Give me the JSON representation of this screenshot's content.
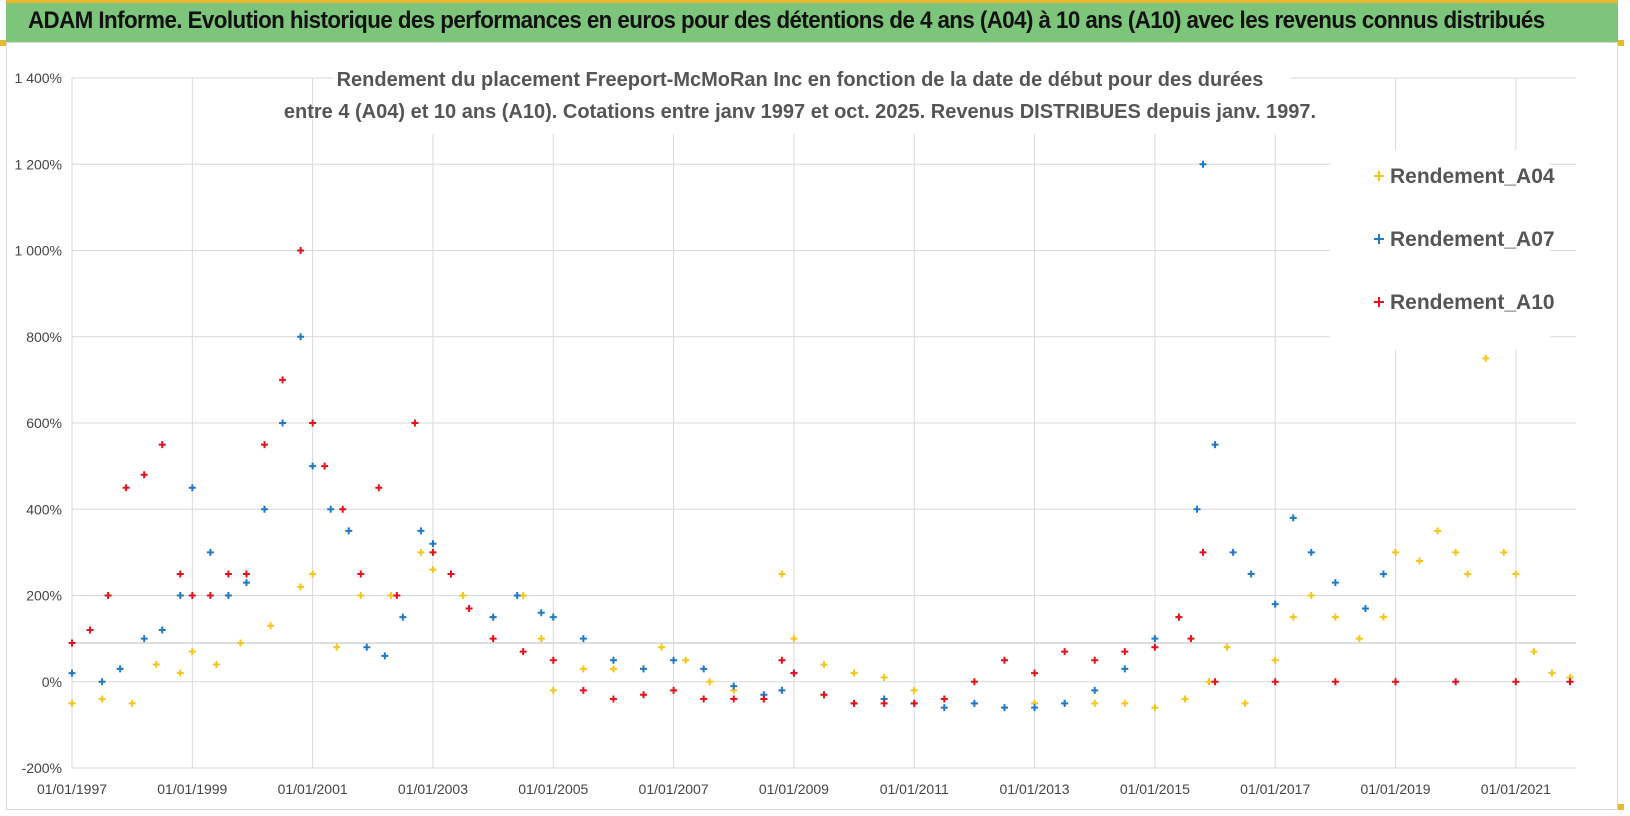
{
  "banner": {
    "title": "ADAM Informe. Evolution historique des performances en euros pour des détentions de 4 ans (A04) à 10 ans (A10) avec les revenus connus distribués"
  },
  "colors": {
    "A04": "#f5c518",
    "A07": "#1f78c8",
    "A10": "#e8101a",
    "grid": "#d9d9d9",
    "banner": "#7dc57b"
  },
  "chart_data": {
    "type": "scatter",
    "title": [
      "Rendement du placement Freeport-McMoRan Inc en fonction de la date de début pour des durées",
      "entre 4 (A04) et 10 ans (A10). Cotations entre janv 1997 et oct. 2025. Revenus DISTRIBUES depuis janv. 1997."
    ],
    "xlabel": "",
    "ylabel": "",
    "xlim": [
      1997.0,
      2022.0
    ],
    "ylim": [
      -200,
      1400
    ],
    "x_ticks": [
      1997,
      1999,
      2001,
      2003,
      2005,
      2007,
      2009,
      2011,
      2013,
      2015,
      2017,
      2019,
      2021
    ],
    "x_tick_labels": [
      "01/01/1997",
      "01/01/1999",
      "01/01/2001",
      "01/01/2003",
      "01/01/2005",
      "01/01/2007",
      "01/01/2009",
      "01/01/2011",
      "01/01/2013",
      "01/01/2015",
      "01/01/2017",
      "01/01/2019",
      "01/01/2021"
    ],
    "y_ticks": [
      -200,
      0,
      200,
      400,
      600,
      800,
      1000,
      1200,
      1400
    ],
    "y_tick_labels": [
      "-200%",
      "0%",
      "200%",
      "400%",
      "600%",
      "800%",
      "1 000%",
      "1 200%",
      "1 400%"
    ],
    "grid": true,
    "legend_position": "top-right",
    "series": [
      {
        "name": "Rendement_A04",
        "x": [
          1997.0,
          1997.5,
          1998.0,
          1998.4,
          1998.8,
          1999.0,
          1999.4,
          1999.8,
          2000.3,
          2000.8,
          2001.0,
          2001.4,
          2001.8,
          2002.3,
          2002.8,
          2003.0,
          2003.5,
          2004.0,
          2004.5,
          2004.8,
          2005.0,
          2005.5,
          2006.0,
          2006.5,
          2006.8,
          2007.2,
          2007.6,
          2008.0,
          2008.5,
          2008.8,
          2009.0,
          2009.5,
          2010.0,
          2010.5,
          2011.0,
          2011.5,
          2012.0,
          2012.5,
          2013.0,
          2013.5,
          2014.0,
          2014.5,
          2015.0,
          2015.5,
          2015.9,
          2016.2,
          2016.5,
          2017.0,
          2017.3,
          2017.6,
          2018.0,
          2018.4,
          2018.8,
          2019.0,
          2019.4,
          2019.7,
          2020.0,
          2020.2,
          2020.5,
          2020.8,
          2021.0,
          2021.3,
          2021.6,
          2021.9
        ],
        "values": [
          -50,
          -40,
          -50,
          40,
          20,
          70,
          40,
          90,
          130,
          220,
          250,
          80,
          200,
          200,
          300,
          260,
          200,
          150,
          200,
          100,
          -20,
          30,
          30,
          30,
          80,
          50,
          0,
          -20,
          -40,
          250,
          100,
          40,
          20,
          10,
          -20,
          -40,
          -50,
          -60,
          -50,
          -50,
          -50,
          -50,
          -60,
          -40,
          0,
          80,
          -50,
          50,
          150,
          200,
          150,
          100,
          150,
          300,
          280,
          350,
          300,
          250,
          750,
          300,
          250,
          70,
          20,
          10
        ]
      },
      {
        "name": "Rendement_A07",
        "x": [
          1997.0,
          1997.5,
          1997.8,
          1998.2,
          1998.5,
          1998.8,
          1999.0,
          1999.3,
          1999.6,
          1999.9,
          2000.2,
          2000.5,
          2000.8,
          2001.0,
          2001.3,
          2001.6,
          2001.9,
          2002.2,
          2002.5,
          2002.8,
          2003.0,
          2003.3,
          2003.6,
          2004.0,
          2004.4,
          2004.8,
          2005.0,
          2005.5,
          2006.0,
          2006.5,
          2007.0,
          2007.5,
          2008.0,
          2008.5,
          2008.8,
          2009.0,
          2009.5,
          2010.0,
          2010.5,
          2011.0,
          2011.5,
          2012.0,
          2012.5,
          2013.0,
          2013.5,
          2014.0,
          2014.5,
          2015.0,
          2015.4,
          2015.7,
          2015.8,
          2016.0,
          2016.3,
          2016.6,
          2017.0,
          2017.3,
          2017.6,
          2018.0,
          2018.5,
          2018.8
        ],
        "values": [
          20,
          0,
          30,
          100,
          120,
          200,
          450,
          300,
          200,
          230,
          400,
          600,
          800,
          500,
          400,
          350,
          80,
          60,
          150,
          350,
          320,
          250,
          170,
          150,
          200,
          160,
          150,
          100,
          50,
          30,
          50,
          30,
          -10,
          -30,
          -20,
          20,
          -30,
          -50,
          -40,
          -50,
          -60,
          -50,
          -60,
          -60,
          -50,
          -20,
          30,
          100,
          150,
          400,
          1200,
          550,
          300,
          250,
          180,
          380,
          300,
          230,
          170,
          250
        ]
      },
      {
        "name": "Rendement_A10",
        "x": [
          1997.0,
          1997.3,
          1997.6,
          1997.9,
          1998.2,
          1998.5,
          1998.8,
          1999.0,
          1999.3,
          1999.6,
          1999.9,
          2000.2,
          2000.5,
          2000.8,
          2001.0,
          2001.2,
          2001.5,
          2001.8,
          2002.1,
          2002.4,
          2002.7,
          2003.0,
          2003.3,
          2003.6,
          2004.0,
          2004.5,
          2005.0,
          2005.5,
          2006.0,
          2006.5,
          2007.0,
          2007.5,
          2008.0,
          2008.5,
          2008.8,
          2009.0,
          2009.5,
          2010.0,
          2010.5,
          2011.0,
          2011.5,
          2012.0,
          2012.5,
          2013.0,
          2013.5,
          2014.0,
          2014.5,
          2015.0,
          2015.4,
          2015.6,
          2015.8,
          2016.0,
          2017.0,
          2018.0,
          2019.0,
          2020.0,
          2021.0,
          2021.9
        ],
        "values": [
          90,
          120,
          200,
          450,
          480,
          550,
          250,
          200,
          200,
          250,
          250,
          550,
          700,
          1000,
          600,
          500,
          400,
          250,
          450,
          200,
          600,
          300,
          250,
          170,
          100,
          70,
          50,
          -20,
          -40,
          -30,
          -20,
          -40,
          -40,
          -40,
          50,
          20,
          -30,
          -50,
          -50,
          -50,
          -40,
          0,
          50,
          20,
          70,
          50,
          70,
          80,
          150,
          100,
          300,
          0,
          0,
          0,
          0,
          0,
          0,
          0
        ]
      }
    ]
  }
}
